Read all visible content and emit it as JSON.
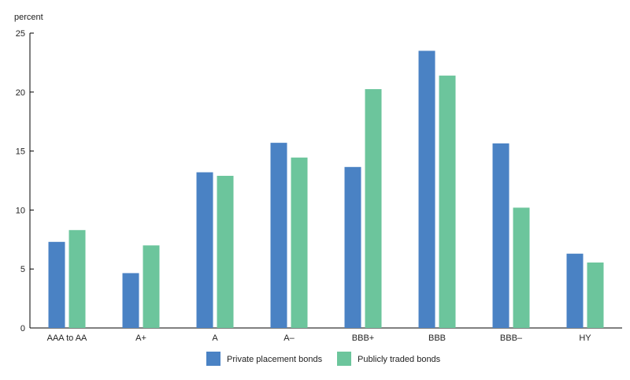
{
  "chart_data": {
    "type": "bar",
    "title": "",
    "xlabel": "",
    "ylabel": "percent",
    "ylim": [
      0,
      25
    ],
    "yticks": [
      0,
      5,
      10,
      15,
      20,
      25
    ],
    "grid": false,
    "legend_position": "bottom-center",
    "categories": [
      "AAA to AA",
      "A+",
      "A",
      "A–",
      "BBB+",
      "BBB",
      "BBB–",
      "HY"
    ],
    "series": [
      {
        "name": "Private placement bonds",
        "color": "#4a82c4",
        "values": [
          7.3,
          4.65,
          13.2,
          15.7,
          13.65,
          23.5,
          15.65,
          6.3
        ]
      },
      {
        "name": "Publicly traded bonds",
        "color": "#6cc59c",
        "values": [
          8.3,
          7.0,
          12.9,
          14.45,
          20.25,
          21.4,
          10.2,
          5.55
        ]
      }
    ]
  }
}
